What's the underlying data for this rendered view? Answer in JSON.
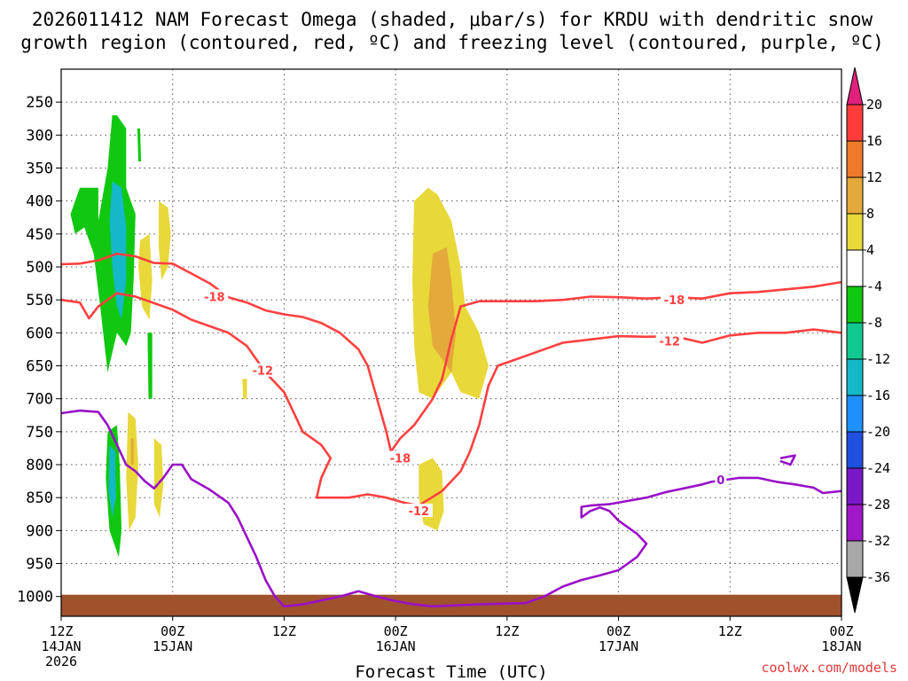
{
  "chart_data": {
    "type": "contour-crosssection",
    "title_lines": [
      "2026011412 NAM Forecast Omega (shaded, μbar/s) for KRDU with dendritic snow",
      "growth region (contoured, red, ºC) and freezing level (contoured, purple, ºC)"
    ],
    "xlabel": "Forecast Time (UTC)",
    "ylabel": "",
    "credit": "coolwx.com/models",
    "x_range_hours": [
      0,
      84
    ],
    "y_range_hpa": [
      200,
      1030
    ],
    "y_ticks": [
      250,
      300,
      350,
      400,
      450,
      500,
      550,
      600,
      650,
      700,
      750,
      800,
      850,
      900,
      950,
      1000
    ],
    "x_ticks": [
      {
        "hour": 0,
        "lines": [
          "12Z",
          "14JAN",
          "2026"
        ]
      },
      {
        "hour": 12,
        "lines": [
          "00Z",
          "15JAN"
        ]
      },
      {
        "hour": 24,
        "lines": [
          "12Z"
        ]
      },
      {
        "hour": 36,
        "lines": [
          "00Z",
          "16JAN"
        ]
      },
      {
        "hour": 48,
        "lines": [
          "12Z"
        ]
      },
      {
        "hour": 60,
        "lines": [
          "00Z",
          "17JAN"
        ]
      },
      {
        "hour": 72,
        "lines": [
          "12Z"
        ]
      },
      {
        "hour": 84,
        "lines": [
          "00Z",
          "18JAN"
        ]
      }
    ],
    "colorbar": {
      "labels": [
        "20",
        "16",
        "12",
        "8",
        "4",
        "-4",
        "-8",
        "-12",
        "-16",
        "-20",
        "-24",
        "-28",
        "-32",
        "-36"
      ],
      "colors": [
        "#ff3b3b",
        "#ee7a2a",
        "#e3a93a",
        "#e8d83a",
        "#ffffff",
        "#10c810",
        "#10c890",
        "#14b8c8",
        "#1e90ff",
        "#2050e0",
        "#7a18c8",
        "#a018c8",
        "#a8a8a8"
      ],
      "top_triangle": "#e0207a",
      "bottom_triangle": "#000000"
    },
    "ground_color": "#a0522d",
    "omega_regions": [
      {
        "value": -8,
        "color": "#10c810",
        "points": [
          [
            2,
            380
          ],
          [
            4,
            380
          ],
          [
            4,
            430
          ],
          [
            5,
            350
          ],
          [
            5.5,
            270
          ],
          [
            6,
            270
          ],
          [
            7,
            290
          ],
          [
            7,
            380
          ],
          [
            8,
            420
          ],
          [
            7.8,
            520
          ],
          [
            7.5,
            600
          ],
          [
            7,
            620
          ],
          [
            6,
            600
          ],
          [
            5,
            660
          ],
          [
            4.2,
            560
          ],
          [
            3.5,
            480
          ],
          [
            2.5,
            440
          ],
          [
            1.5,
            450
          ],
          [
            1,
            420
          ]
        ]
      },
      {
        "value": -8,
        "color": "#10c810",
        "points": [
          [
            5,
            750
          ],
          [
            6,
            740
          ],
          [
            6.3,
            800
          ],
          [
            6.5,
            900
          ],
          [
            6.2,
            940
          ],
          [
            5.2,
            900
          ],
          [
            4.8,
            820
          ]
        ]
      },
      {
        "value": -8,
        "color": "#10c810",
        "points": [
          [
            8.2,
            290
          ],
          [
            8.5,
            290
          ],
          [
            8.6,
            340
          ],
          [
            8.3,
            340
          ]
        ]
      },
      {
        "value": -8,
        "color": "#10c810",
        "points": [
          [
            9.3,
            600
          ],
          [
            9.8,
            600
          ],
          [
            9.8,
            700
          ],
          [
            9.4,
            700
          ]
        ]
      },
      {
        "value": -12,
        "color": "#14b8c8",
        "points": [
          [
            5.5,
            370
          ],
          [
            6.5,
            380
          ],
          [
            7,
            440
          ],
          [
            7,
            520
          ],
          [
            6.5,
            580
          ],
          [
            6,
            560
          ],
          [
            5.5,
            500
          ],
          [
            5.2,
            430
          ]
        ]
      },
      {
        "value": -12,
        "color": "#14b8c8",
        "points": [
          [
            5.2,
            770
          ],
          [
            5.8,
            780
          ],
          [
            5.9,
            850
          ],
          [
            5.5,
            880
          ],
          [
            5.1,
            840
          ]
        ]
      },
      {
        "value": 4,
        "color": "#e8d83a",
        "points": [
          [
            10.5,
            400
          ],
          [
            11.5,
            410
          ],
          [
            11.8,
            450
          ],
          [
            11.5,
            500
          ],
          [
            10.8,
            520
          ],
          [
            10.5,
            470
          ]
        ]
      },
      {
        "value": 4,
        "color": "#e8d83a",
        "points": [
          [
            8.5,
            460
          ],
          [
            9.5,
            450
          ],
          [
            9.8,
            520
          ],
          [
            9.5,
            580
          ],
          [
            8.7,
            560
          ],
          [
            8.3,
            500
          ]
        ]
      },
      {
        "value": 4,
        "color": "#e8d83a",
        "points": [
          [
            7.2,
            720
          ],
          [
            8,
            730
          ],
          [
            8.3,
            800
          ],
          [
            8,
            880
          ],
          [
            7.3,
            900
          ],
          [
            7,
            820
          ]
        ]
      },
      {
        "value": 4,
        "color": "#e8d83a",
        "points": [
          [
            10,
            760
          ],
          [
            10.8,
            770
          ],
          [
            11,
            830
          ],
          [
            10.6,
            880
          ],
          [
            10,
            860
          ]
        ]
      },
      {
        "value": 4,
        "color": "#e8d83a",
        "points": [
          [
            19.5,
            670
          ],
          [
            20,
            670
          ],
          [
            20,
            700
          ],
          [
            19.6,
            700
          ]
        ]
      },
      {
        "value": 4,
        "color": "#e8d83a",
        "points": [
          [
            38,
            400
          ],
          [
            39.5,
            380
          ],
          [
            40.5,
            390
          ],
          [
            42,
            430
          ],
          [
            43,
            500
          ],
          [
            43.5,
            560
          ],
          [
            45,
            600
          ],
          [
            46,
            650
          ],
          [
            45,
            700
          ],
          [
            43,
            690
          ],
          [
            42,
            660
          ],
          [
            40,
            700
          ],
          [
            38.5,
            690
          ],
          [
            38,
            620
          ],
          [
            37.8,
            520
          ]
        ]
      },
      {
        "value": 4,
        "color": "#e8d83a",
        "points": [
          [
            38.5,
            800
          ],
          [
            40,
            790
          ],
          [
            41,
            810
          ],
          [
            41.2,
            870
          ],
          [
            40.5,
            900
          ],
          [
            39,
            890
          ],
          [
            38.5,
            850
          ]
        ]
      },
      {
        "value": 8,
        "color": "#e3a93a",
        "points": [
          [
            40,
            480
          ],
          [
            41.5,
            470
          ],
          [
            42,
            520
          ],
          [
            42.5,
            600
          ],
          [
            42,
            660
          ],
          [
            41,
            640
          ],
          [
            40,
            620
          ],
          [
            39.5,
            560
          ]
        ]
      },
      {
        "value": 8,
        "color": "#e3a93a",
        "points": [
          [
            7.5,
            760
          ],
          [
            7.8,
            760
          ],
          [
            7.8,
            800
          ],
          [
            7.5,
            800
          ]
        ]
      }
    ],
    "dgz_contours": [
      {
        "level": -18,
        "label": "-18",
        "color": "#ff4040",
        "points": [
          [
            0,
            496
          ],
          [
            2,
            495
          ],
          [
            4,
            490
          ],
          [
            6,
            480
          ],
          [
            8,
            484
          ],
          [
            10,
            494
          ],
          [
            12,
            495
          ],
          [
            14,
            510
          ],
          [
            16,
            525
          ],
          [
            18,
            546
          ],
          [
            20,
            554
          ],
          [
            22,
            566
          ],
          [
            24,
            572
          ],
          [
            26,
            576
          ],
          [
            28,
            585
          ],
          [
            30,
            600
          ],
          [
            32,
            625
          ],
          [
            33,
            650
          ],
          [
            34,
            700
          ],
          [
            35,
            750
          ],
          [
            35.5,
            780
          ],
          [
            36.5,
            760
          ],
          [
            38,
            740
          ],
          [
            39,
            720
          ],
          [
            40,
            700
          ],
          [
            41,
            670
          ],
          [
            41.5,
            640
          ],
          [
            42,
            610
          ],
          [
            43,
            560
          ],
          [
            45,
            552
          ],
          [
            48,
            552
          ],
          [
            51,
            552
          ],
          [
            54,
            550
          ],
          [
            57,
            545
          ],
          [
            60,
            546
          ],
          [
            63,
            548
          ],
          [
            66,
            546
          ],
          [
            69,
            548
          ],
          [
            72,
            540
          ],
          [
            75,
            538
          ],
          [
            78,
            534
          ],
          [
            81,
            530
          ],
          [
            84,
            523
          ]
        ],
        "labels": [
          {
            "x": 16.5,
            "y": 545,
            "text": "-18"
          },
          {
            "x": 36.5,
            "y": 790,
            "text": "-18"
          },
          {
            "x": 66,
            "y": 550,
            "text": "-18"
          }
        ]
      },
      {
        "level": -12,
        "label": "-12",
        "color": "#ff4040",
        "points": [
          [
            0,
            550
          ],
          [
            2,
            554
          ],
          [
            3,
            578
          ],
          [
            4,
            560
          ],
          [
            6,
            540
          ],
          [
            8,
            545
          ],
          [
            10,
            555
          ],
          [
            12,
            565
          ],
          [
            14,
            580
          ],
          [
            16,
            590
          ],
          [
            18,
            600
          ],
          [
            20,
            620
          ],
          [
            21,
            640
          ],
          [
            22,
            660
          ],
          [
            24,
            690
          ],
          [
            25,
            720
          ],
          [
            26,
            750
          ],
          [
            28,
            770
          ],
          [
            29,
            790
          ],
          [
            28,
            820
          ],
          [
            27.5,
            850
          ],
          [
            29,
            850
          ],
          [
            31,
            850
          ],
          [
            33,
            845
          ],
          [
            35,
            850
          ],
          [
            37,
            858
          ],
          [
            38.5,
            862
          ],
          [
            41,
            840
          ],
          [
            43,
            810
          ],
          [
            44,
            780
          ],
          [
            45,
            740
          ],
          [
            46,
            680
          ],
          [
            47,
            650
          ],
          [
            49,
            640
          ],
          [
            51,
            630
          ],
          [
            54,
            615
          ],
          [
            57,
            610
          ],
          [
            60,
            605
          ],
          [
            63,
            606
          ],
          [
            66,
            605
          ],
          [
            69,
            615
          ],
          [
            72,
            604
          ],
          [
            75,
            600
          ],
          [
            78,
            600
          ],
          [
            81,
            595
          ],
          [
            84,
            600
          ]
        ],
        "labels": [
          {
            "x": 21.7,
            "y": 657,
            "text": "-12"
          },
          {
            "x": 38.5,
            "y": 870,
            "text": "-12"
          },
          {
            "x": 65.5,
            "y": 612,
            "text": "-12"
          }
        ]
      }
    ],
    "freezing_contours": [
      {
        "level": 0,
        "color": "#9a10c8",
        "points": [
          [
            0,
            722
          ],
          [
            2,
            718
          ],
          [
            4,
            720
          ],
          [
            5,
            740
          ],
          [
            6,
            770
          ],
          [
            7,
            800
          ],
          [
            8,
            810
          ],
          [
            9,
            825
          ],
          [
            10,
            836
          ],
          [
            11,
            820
          ],
          [
            12,
            800
          ],
          [
            13,
            800
          ],
          [
            14,
            822
          ],
          [
            16,
            838
          ],
          [
            18,
            858
          ],
          [
            19,
            880
          ],
          [
            20,
            910
          ],
          [
            21,
            940
          ],
          [
            22,
            975
          ],
          [
            23,
            1000
          ],
          [
            24,
            1015
          ],
          [
            26,
            1012
          ],
          [
            28,
            1006
          ],
          [
            30,
            1000
          ],
          [
            32,
            992
          ],
          [
            34,
            1000
          ],
          [
            36,
            1007
          ],
          [
            38,
            1012
          ],
          [
            40,
            1015
          ],
          [
            45,
            1012
          ],
          [
            50,
            1010
          ],
          [
            52,
            1000
          ],
          [
            54,
            985
          ],
          [
            56,
            975
          ],
          [
            58,
            968
          ],
          [
            60,
            960
          ],
          [
            62,
            940
          ],
          [
            63,
            920
          ],
          [
            62,
            905
          ],
          [
            60,
            885
          ],
          [
            59,
            870
          ],
          [
            58,
            865
          ],
          [
            57,
            870
          ],
          [
            56,
            880
          ],
          [
            56,
            864
          ],
          [
            57,
            862
          ],
          [
            59,
            860
          ],
          [
            61,
            855
          ],
          [
            63,
            850
          ],
          [
            65,
            842
          ],
          [
            67,
            836
          ],
          [
            69,
            830
          ],
          [
            70,
            826
          ],
          [
            72,
            822
          ],
          [
            73,
            820
          ],
          [
            75,
            820
          ],
          [
            77,
            826
          ],
          [
            79,
            830
          ],
          [
            81,
            835
          ],
          [
            82,
            843
          ],
          [
            84,
            840
          ]
        ],
        "labels": [
          {
            "x": 71,
            "y": 823,
            "text": "0"
          }
        ]
      },
      {
        "level": 0,
        "color": "#9a10c8",
        "points": [
          [
            77.5,
            790
          ],
          [
            79,
            786
          ],
          [
            78.5,
            800
          ],
          [
            77.5,
            795
          ]
        ],
        "labels": []
      }
    ]
  }
}
